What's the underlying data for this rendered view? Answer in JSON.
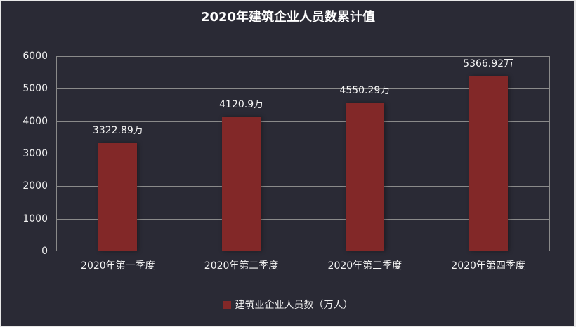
{
  "chart_data": {
    "type": "bar",
    "title": "2020年建筑企业人员数累计值",
    "categories": [
      "2020年第一季度",
      "2020年第二季度",
      "2020年第三季度",
      "2020年第四季度"
    ],
    "series": [
      {
        "name": "建筑业企业人员数（万人）",
        "values": [
          3322.89,
          4120.9,
          4550.29,
          5366.92
        ],
        "color": "#822828"
      }
    ],
    "data_labels": [
      "3322.89万",
      "4120.9万",
      "4550.29万",
      "5366.92万"
    ],
    "xlabel": "",
    "ylabel": "",
    "ylim": [
      0,
      6000
    ],
    "yticks": [
      "0",
      "1000",
      "2000",
      "3000",
      "4000",
      "5000",
      "6000"
    ],
    "grid": true,
    "legend_position": "bottom"
  },
  "colors": {
    "background": "#2a2a35",
    "bar": "#822828",
    "grid": "#8a8a8a",
    "text": "#f0f0f0"
  }
}
